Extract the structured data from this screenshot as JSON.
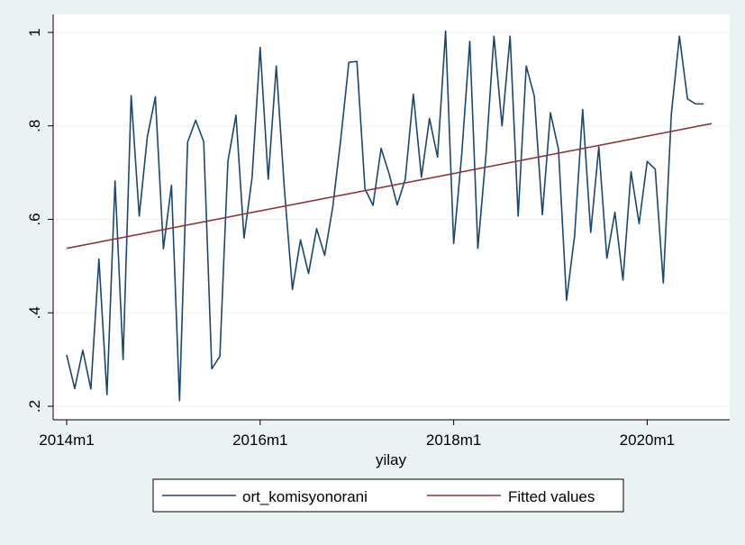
{
  "chart_data": {
    "type": "line",
    "xlabel": "yilay",
    "ylabel": "",
    "ylim": [
      0.2,
      1.0
    ],
    "y_ticks": [
      {
        "value": 0.2,
        "label": ".2"
      },
      {
        "value": 0.4,
        "label": ".4"
      },
      {
        "value": 0.6,
        "label": ".6"
      },
      {
        "value": 0.8,
        "label": ".8"
      },
      {
        "value": 1.0,
        "label": "1"
      }
    ],
    "x_ticks": [
      {
        "value": 0,
        "label": "2014m1"
      },
      {
        "value": 24,
        "label": "2016m1"
      },
      {
        "value": 48,
        "label": "2018m1"
      },
      {
        "value": 72,
        "label": "2020m1"
      }
    ],
    "xlim": [
      0,
      80
    ],
    "grid": true,
    "legend_position": "bottom",
    "colors": {
      "background": "#eaf2f3",
      "plot_bg": "#ffffff",
      "series1": "#1a476f",
      "series2": "#90353b",
      "grid": "#eaf2f3"
    },
    "series": [
      {
        "name": "ort_komisyonorani",
        "color": "#1a476f",
        "values": [
          0.31,
          0.238,
          0.32,
          0.237,
          0.515,
          0.225,
          0.682,
          0.3,
          0.865,
          0.607,
          0.776,
          0.862,
          0.537,
          0.673,
          0.212,
          0.765,
          0.812,
          0.766,
          0.28,
          0.307,
          0.724,
          0.823,
          0.56,
          0.69,
          0.968,
          0.686,
          0.928,
          0.666,
          0.45,
          0.556,
          0.484,
          0.58,
          0.523,
          0.626,
          0.772,
          0.936,
          0.938,
          0.665,
          0.63,
          0.752,
          0.697,
          0.631,
          0.686,
          0.868,
          0.69,
          0.816,
          0.733,
          1.003,
          0.548,
          0.739,
          0.981,
          0.538,
          0.737,
          0.992,
          0.8,
          0.992,
          0.607,
          0.928,
          0.864,
          0.61,
          0.828,
          0.75,
          0.427,
          0.565,
          0.835,
          0.572,
          0.755,
          0.517,
          0.615,
          0.47,
          0.702,
          0.591,
          0.724,
          0.707,
          0.464,
          0.826,
          0.992,
          0.858,
          0.847,
          0.847
        ]
      },
      {
        "name": "Fitted values",
        "color": "#90353b",
        "x": [
          0,
          80
        ],
        "values": [
          0.538,
          0.805
        ]
      }
    ]
  }
}
